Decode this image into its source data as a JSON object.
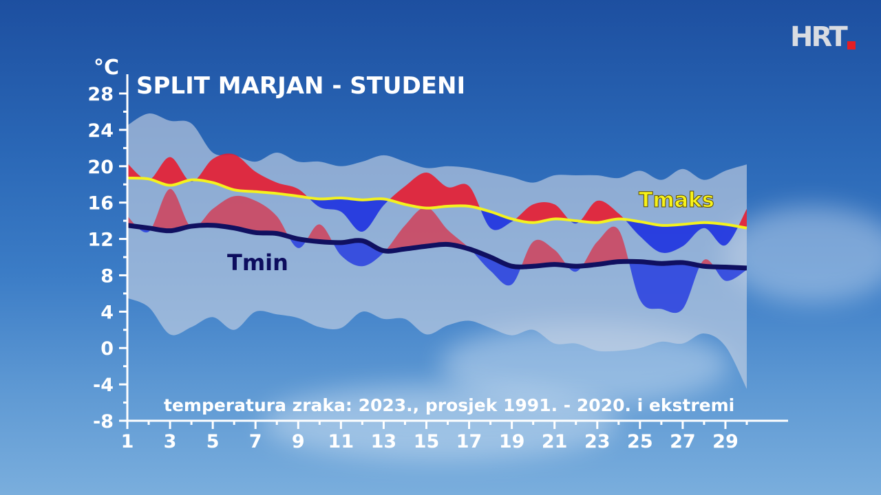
{
  "logo": {
    "text": "HRT"
  },
  "chart_data": {
    "type": "line",
    "title": "SPLIT MARJAN - STUDENI",
    "unit_label": "°C",
    "subtitle": "temperatura zraka: 2023., prosjek 1991. - 2020. i ekstremi",
    "ylim": [
      -8,
      28
    ],
    "yticks": [
      -8,
      -4,
      0,
      4,
      8,
      12,
      16,
      20,
      24,
      28
    ],
    "xlim": [
      1,
      30
    ],
    "xticks": [
      1,
      3,
      5,
      7,
      9,
      11,
      13,
      15,
      17,
      19,
      21,
      23,
      25,
      27,
      29
    ],
    "x": [
      1,
      2,
      3,
      4,
      5,
      6,
      7,
      8,
      9,
      10,
      11,
      12,
      13,
      14,
      15,
      16,
      17,
      18,
      19,
      20,
      21,
      22,
      23,
      24,
      25,
      26,
      27,
      28,
      29,
      30
    ],
    "series": [
      {
        "name": "extreme_max",
        "values": [
          24.5,
          25.8,
          25.0,
          24.7,
          21.5,
          21.2,
          20.5,
          21.5,
          20.5,
          20.5,
          20.0,
          20.5,
          21.2,
          20.5,
          19.8,
          20.0,
          19.8,
          19.3,
          18.8,
          18.2,
          19.0,
          19.0,
          19.0,
          18.7,
          19.5,
          18.5,
          19.7,
          18.5,
          19.5,
          20.2
        ]
      },
      {
        "name": "extreme_min",
        "values": [
          5.5,
          4.5,
          1.5,
          2.3,
          3.4,
          2.0,
          4.0,
          3.7,
          3.3,
          2.3,
          2.2,
          4.0,
          3.2,
          3.2,
          1.5,
          2.5,
          3.0,
          2.2,
          1.4,
          2.0,
          0.5,
          0.5,
          -0.3,
          -0.3,
          0.0,
          0.7,
          0.5,
          1.6,
          0.2,
          -4.5
        ]
      },
      {
        "name": "Tmaks 2023",
        "values": [
          20.3,
          18.5,
          21.0,
          18.3,
          20.8,
          21.3,
          19.4,
          18.2,
          17.5,
          15.5,
          15.0,
          12.8,
          15.7,
          17.8,
          19.3,
          17.7,
          17.8,
          13.2,
          13.9,
          15.8,
          15.8,
          13.7,
          16.2,
          14.8,
          12.3,
          10.5,
          11.2,
          13.2,
          11.3,
          15.3
        ]
      },
      {
        "name": "Tmin 2023",
        "values": [
          14.5,
          12.8,
          17.5,
          13.3,
          15.3,
          16.7,
          16.2,
          14.5,
          11.0,
          13.6,
          10.2,
          9.0,
          10.5,
          13.5,
          15.5,
          13.0,
          11.0,
          8.5,
          7.0,
          11.7,
          10.8,
          8.4,
          11.7,
          13.0,
          5.3,
          4.3,
          4.3,
          9.7,
          7.4,
          8.6
        ]
      },
      {
        "name": "Tmaks",
        "label": "Tmaks",
        "values": [
          18.7,
          18.6,
          17.9,
          18.5,
          18.2,
          17.4,
          17.2,
          17.0,
          16.7,
          16.4,
          16.5,
          16.3,
          16.4,
          15.8,
          15.4,
          15.6,
          15.6,
          15.0,
          14.2,
          13.8,
          14.2,
          14.0,
          13.8,
          14.2,
          13.9,
          13.5,
          13.6,
          13.8,
          13.6,
          13.2
        ]
      },
      {
        "name": "Tmin",
        "label": "Tmin",
        "values": [
          13.5,
          13.2,
          12.9,
          13.4,
          13.5,
          13.2,
          12.7,
          12.6,
          12.0,
          11.7,
          11.6,
          11.8,
          10.7,
          10.9,
          11.2,
          11.4,
          10.9,
          10.0,
          9.0,
          9.0,
          9.2,
          9.0,
          9.2,
          9.5,
          9.5,
          9.3,
          9.4,
          9.0,
          8.9,
          8.8
        ]
      }
    ],
    "colors": {
      "envelope": "#c9d3e4",
      "warm": "#e8192c",
      "cold": "#1a2fe0",
      "tmax_line": "#f4f21e",
      "tmin_line": "#101060",
      "axis": "#ffffff"
    }
  }
}
